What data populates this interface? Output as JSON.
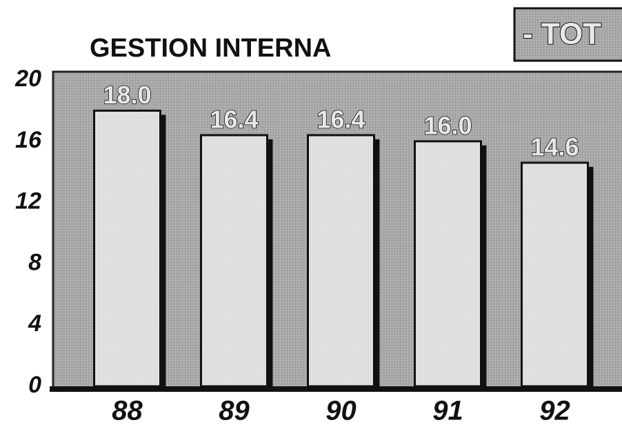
{
  "chart_data": {
    "type": "bar",
    "title": "GESTION INTERNA",
    "subtitle": "- TOT",
    "categories": [
      "88",
      "89",
      "90",
      "91",
      "92"
    ],
    "values": [
      18.0,
      16.4,
      16.4,
      16.0,
      14.6
    ],
    "value_labels": [
      "18.0",
      "16.4",
      "16.4",
      "16.0",
      "14.6"
    ],
    "color": "#dcdcdc",
    "ylim": [
      0,
      20
    ],
    "yticks": [
      0,
      4,
      8,
      12,
      16,
      20
    ],
    "grid": false
  }
}
